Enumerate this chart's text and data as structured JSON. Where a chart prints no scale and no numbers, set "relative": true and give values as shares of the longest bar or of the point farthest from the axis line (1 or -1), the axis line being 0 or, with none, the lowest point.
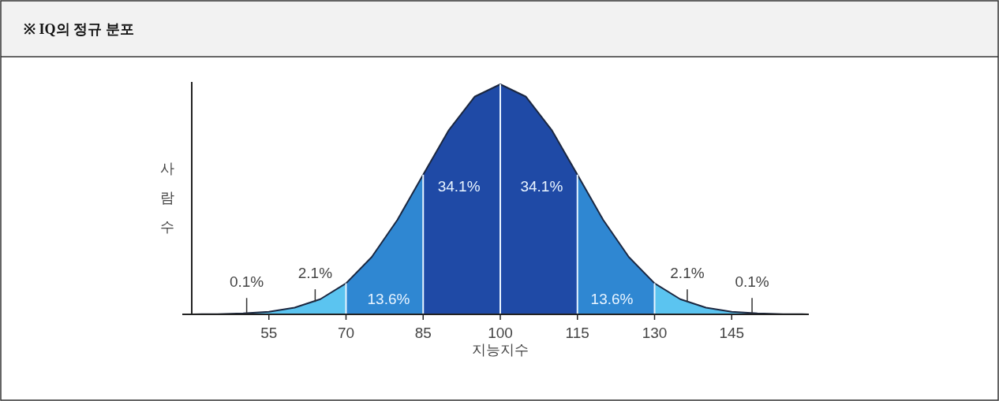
{
  "chart_data": {
    "type": "area",
    "title": "※ IQ의 정규 분포",
    "xlabel": "지능지수",
    "ylabel": "사람 수",
    "relative": true,
    "xlim": [
      40,
      160
    ],
    "xticks": [
      55,
      70,
      85,
      100,
      115,
      130,
      145
    ],
    "series": [
      {
        "color": "#5bc4f0",
        "x": [
          40,
          45,
          50,
          55,
          60,
          65,
          70
        ],
        "values": [
          0.0003,
          0.0012,
          0.004,
          0.011,
          0.029,
          0.066,
          0.135
        ]
      },
      {
        "color": "#2f87d2",
        "x": [
          70,
          75,
          80,
          85
        ],
        "values": [
          0.135,
          0.249,
          0.411,
          0.607
        ]
      },
      {
        "color": "#1f4aa6",
        "x": [
          85,
          90,
          95,
          100
        ],
        "values": [
          0.607,
          0.801,
          0.946,
          1
        ]
      },
      {
        "color": "#1f4aa6",
        "x": [
          100,
          105,
          110,
          115
        ],
        "values": [
          1,
          0.946,
          0.801,
          0.607
        ]
      },
      {
        "color": "#2f87d2",
        "x": [
          115,
          120,
          125,
          130
        ],
        "values": [
          0.607,
          0.411,
          0.249,
          0.135
        ]
      },
      {
        "color": "#5bc4f0",
        "x": [
          130,
          135,
          140,
          145,
          150,
          155,
          160
        ],
        "values": [
          0.135,
          0.066,
          0.029,
          0.011,
          0.004,
          0.0012,
          0.0003
        ]
      }
    ],
    "annotations": [
      "0.1%",
      "2.1%",
      "13.6%",
      "34.1%",
      "34.1%",
      "13.6%",
      "2.1%",
      "0.1%"
    ]
  }
}
